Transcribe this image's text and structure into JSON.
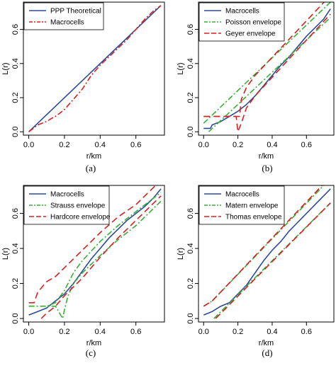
{
  "colors": {
    "blue": "#2c4a9a",
    "red": "#d52020",
    "green": "#35b035"
  },
  "chart_data": [
    {
      "panel": "a",
      "type": "line",
      "caption": "(a)",
      "xlabel": "r/km",
      "ylabel": "L(r)",
      "xlim": [
        -0.03,
        0.76
      ],
      "ylim": [
        -0.02,
        0.76
      ],
      "xticks": [
        "0.0",
        "0.2",
        "0.4",
        "0.6"
      ],
      "yticks": [
        "0.0",
        "0.2",
        "0.4",
        "0.6"
      ],
      "legend_position": "top-left",
      "series": [
        {
          "name": "PPP Theoretical",
          "color": "blue",
          "dash": "solid",
          "x": [
            0.0,
            0.74
          ],
          "y": [
            0.0,
            0.74
          ]
        },
        {
          "name": "Macrocells",
          "color": "red",
          "dash": "dashdot",
          "x": [
            0.0,
            0.05,
            0.1,
            0.13,
            0.15,
            0.2,
            0.25,
            0.3,
            0.35,
            0.4,
            0.45,
            0.5,
            0.55,
            0.6,
            0.65,
            0.7,
            0.74
          ],
          "y": [
            0.0,
            0.04,
            0.06,
            0.08,
            0.09,
            0.13,
            0.19,
            0.25,
            0.33,
            0.39,
            0.44,
            0.49,
            0.54,
            0.6,
            0.66,
            0.71,
            0.74
          ]
        }
      ]
    },
    {
      "panel": "b",
      "type": "line",
      "caption": "(b)",
      "xlabel": "r/km",
      "ylabel": "L(r)",
      "xlim": [
        -0.03,
        0.76
      ],
      "ylim": [
        -0.02,
        0.76
      ],
      "xticks": [
        "0.0",
        "0.2",
        "0.4",
        "0.6"
      ],
      "yticks": [
        "0.0",
        "0.2",
        "0.4",
        "0.6"
      ],
      "legend_position": "top-left",
      "series": [
        {
          "name": "Macrocells",
          "color": "blue",
          "dash": "solid",
          "x": [
            0.0,
            0.04,
            0.05,
            0.1,
            0.15,
            0.2,
            0.25,
            0.3,
            0.35,
            0.4,
            0.45,
            0.5,
            0.55,
            0.6,
            0.65,
            0.7,
            0.74
          ],
          "y": [
            0.02,
            0.02,
            0.04,
            0.06,
            0.09,
            0.12,
            0.16,
            0.21,
            0.27,
            0.33,
            0.39,
            0.44,
            0.5,
            0.56,
            0.61,
            0.66,
            0.72
          ]
        },
        {
          "name": "Poisson envelope",
          "color": "green",
          "dash": "dashdot",
          "x": [
            0.0,
            0.74
          ],
          "y": [
            0.05,
            0.76
          ]
        },
        {
          "name": "Poisson envelope",
          "color": "green",
          "dash": "dashdot",
          "x": [
            0.03,
            0.74
          ],
          "y": [
            0.0,
            0.67
          ]
        },
        {
          "name": "Geyer envelope",
          "color": "red",
          "dash": "dashed",
          "x": [
            0.0,
            0.21,
            0.22,
            0.25,
            0.3,
            0.74
          ],
          "y": [
            0.09,
            0.09,
            0.19,
            0.26,
            0.33,
            0.8
          ]
        },
        {
          "name": "Geyer envelope",
          "color": "red",
          "dash": "dashed",
          "x": [
            0.0,
            0.19,
            0.2,
            0.22,
            0.25,
            0.3,
            0.4,
            0.74
          ],
          "y": [
            0.09,
            0.09,
            0.0,
            0.05,
            0.14,
            0.21,
            0.32,
            0.69
          ]
        }
      ]
    },
    {
      "panel": "c",
      "type": "line",
      "caption": "(c)",
      "xlabel": "r/km",
      "ylabel": "L(r)",
      "xlim": [
        -0.03,
        0.76
      ],
      "ylim": [
        -0.02,
        0.76
      ],
      "xticks": [
        "0.0",
        "0.2",
        "0.4",
        "0.6"
      ],
      "yticks": [
        "0.0",
        "0.2",
        "0.4",
        "0.6"
      ],
      "legend_position": "top-left",
      "series": [
        {
          "name": "Macrocells",
          "color": "blue",
          "dash": "solid",
          "x": [
            0.0,
            0.05,
            0.1,
            0.15,
            0.2,
            0.25,
            0.3,
            0.35,
            0.4,
            0.45,
            0.5,
            0.55,
            0.6,
            0.65,
            0.7,
            0.74
          ],
          "y": [
            0.02,
            0.04,
            0.06,
            0.1,
            0.14,
            0.2,
            0.27,
            0.34,
            0.4,
            0.46,
            0.51,
            0.56,
            0.6,
            0.64,
            0.69,
            0.74
          ]
        },
        {
          "name": "Strauss envelope",
          "color": "green",
          "dash": "dashdot",
          "x": [
            0.0,
            0.1,
            0.15,
            0.2,
            0.25,
            0.3,
            0.4,
            0.5,
            0.6,
            0.74
          ],
          "y": [
            0.07,
            0.07,
            0.09,
            0.16,
            0.26,
            0.33,
            0.44,
            0.53,
            0.61,
            0.72
          ]
        },
        {
          "name": "Strauss envelope",
          "color": "green",
          "dash": "dashdot",
          "x": [
            0.0,
            0.15,
            0.19,
            0.2,
            0.22,
            0.25,
            0.3,
            0.4,
            0.5,
            0.6,
            0.74
          ],
          "y": [
            0.07,
            0.07,
            0.0,
            0.05,
            0.13,
            0.2,
            0.26,
            0.36,
            0.45,
            0.53,
            0.67
          ]
        },
        {
          "name": "Hardcore envelope",
          "color": "red",
          "dash": "dashed",
          "x": [
            0.0,
            0.03,
            0.05,
            0.1,
            0.15,
            0.2,
            0.3,
            0.4,
            0.5,
            0.6,
            0.74
          ],
          "y": [
            0.09,
            0.09,
            0.15,
            0.21,
            0.24,
            0.29,
            0.39,
            0.49,
            0.58,
            0.65,
            0.79
          ]
        },
        {
          "name": "Hardcore envelope",
          "color": "red",
          "dash": "dashed",
          "x": [
            0.07,
            0.1,
            0.15,
            0.2,
            0.3,
            0.4,
            0.5,
            0.6,
            0.74
          ],
          "y": [
            0.0,
            0.03,
            0.07,
            0.13,
            0.23,
            0.35,
            0.46,
            0.56,
            0.7
          ]
        }
      ]
    },
    {
      "panel": "d",
      "type": "line",
      "caption": "(d)",
      "xlabel": "r/km",
      "ylabel": "L(r)",
      "xlim": [
        -0.03,
        0.76
      ],
      "ylim": [
        -0.02,
        0.76
      ],
      "xticks": [
        "0.0",
        "0.2",
        "0.4",
        "0.6"
      ],
      "yticks": [
        "0.0",
        "0.2",
        "0.4",
        "0.6"
      ],
      "legend_position": "top-left",
      "series": [
        {
          "name": "Macrocells",
          "color": "blue",
          "dash": "solid",
          "x": [
            0.0,
            0.05,
            0.1,
            0.15,
            0.2,
            0.25,
            0.3,
            0.35,
            0.4,
            0.45,
            0.5,
            0.55,
            0.6,
            0.65,
            0.7,
            0.74
          ],
          "y": [
            0.02,
            0.04,
            0.07,
            0.09,
            0.14,
            0.19,
            0.26,
            0.33,
            0.39,
            0.44,
            0.5,
            0.55,
            0.6,
            0.65,
            0.7,
            0.74
          ]
        },
        {
          "name": "Matern envelope",
          "color": "green",
          "dash": "dashdot",
          "x": [
            0.0,
            0.05,
            0.74
          ],
          "y": [
            0.07,
            0.1,
            0.8
          ]
        },
        {
          "name": "Matern envelope",
          "color": "green",
          "dash": "dashdot",
          "x": [
            0.06,
            0.74
          ],
          "y": [
            0.0,
            0.66
          ]
        },
        {
          "name": "Thomas envelope",
          "color": "red",
          "dash": "dashed",
          "x": [
            0.0,
            0.05,
            0.74
          ],
          "y": [
            0.07,
            0.1,
            0.81
          ]
        },
        {
          "name": "Thomas envelope",
          "color": "red",
          "dash": "dashed",
          "x": [
            0.07,
            0.74
          ],
          "y": [
            0.0,
            0.66
          ]
        }
      ]
    }
  ]
}
